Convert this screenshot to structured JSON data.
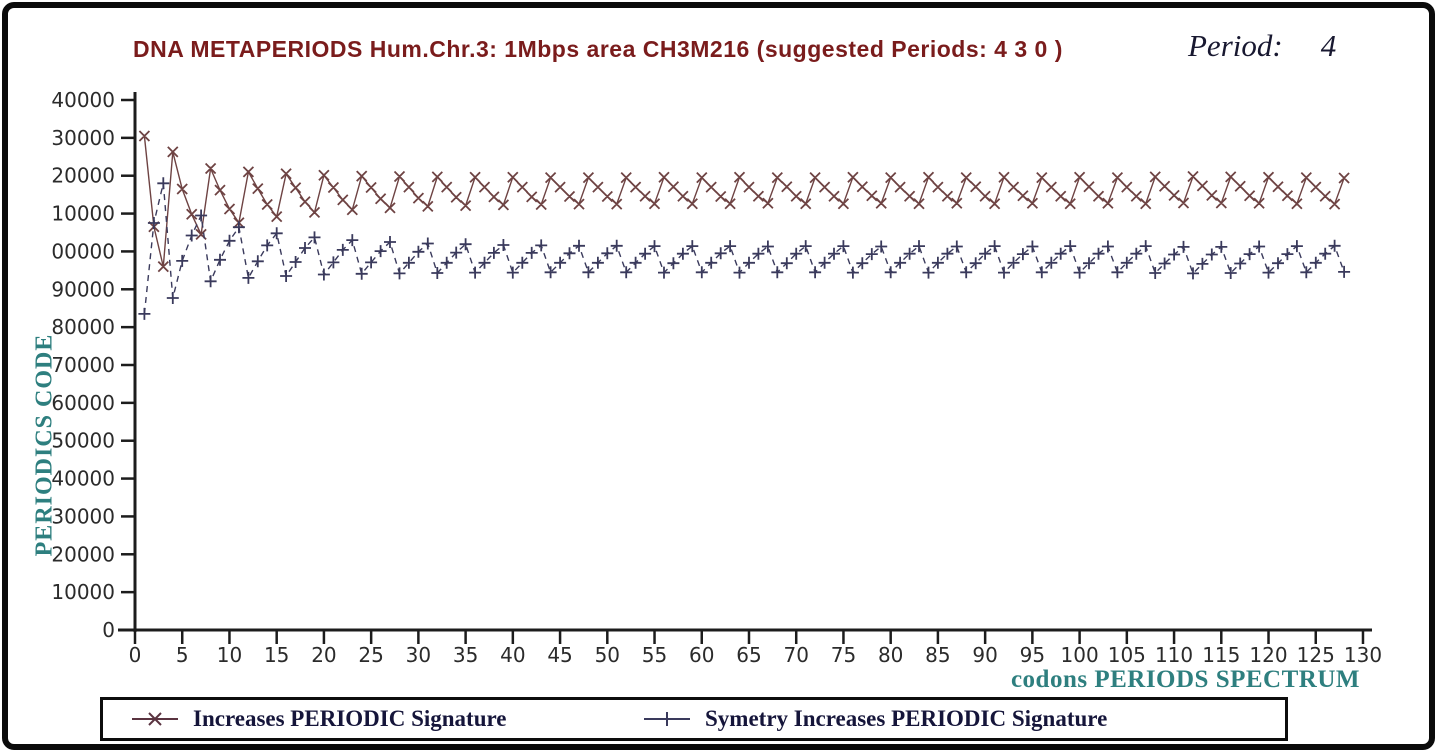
{
  "header": {
    "title": "DNA METAPERIODS Hum.Chr.3: 1Mbps area CH3M216 (suggested Periods: 4 3 0 )",
    "period_label": "Period:",
    "period_value": "4"
  },
  "axes": {
    "y_caption": "PERIODICS CODE",
    "x_caption": "codons PERIODS SPECTRUM",
    "ytick_labels": [
      "40000",
      "30000",
      "20000",
      "10000",
      "00000",
      "90000",
      "80000",
      "70000",
      "60000",
      "50000",
      "40000",
      "30000",
      "20000",
      "10000",
      "0"
    ],
    "xtick_labels": [
      "0",
      "5",
      "10",
      "15",
      "20",
      "25",
      "30",
      "35",
      "40",
      "45",
      "50",
      "55",
      "60",
      "65",
      "70",
      "75",
      "80",
      "85",
      "90",
      "95",
      "100",
      "105",
      "110",
      "115",
      "120",
      "125",
      "130"
    ]
  },
  "legend": {
    "items": [
      {
        "marker": "x-marker-icon",
        "label": "Increases PERIODIC Signature"
      },
      {
        "marker": "plus-marker-icon",
        "label": "Symetry Increases PERIODIC Signature"
      }
    ]
  },
  "colors": {
    "title": "#7a1c1c",
    "period_text": "#181830",
    "teal_caption": "#2e7f7f",
    "axis": "#1c1c1c",
    "tick_text": "#2b2b2b",
    "series_x": "#6e4343",
    "series_plus": "#3a3a5c",
    "legend_text": "#15153a"
  },
  "chart_data": {
    "type": "line",
    "title": "DNA METAPERIODS Hum.Chr.3: 1Mbps area CH3M216 (suggested Periods: 4 3 0 )",
    "xlabel": "codons PERIODS SPECTRUM",
    "ylabel": "PERIODICS CODE",
    "xlim": [
      0,
      130
    ],
    "ylim": [
      0,
      140000
    ],
    "xtick_step": 5,
    "ytick_step": 10000,
    "grid": false,
    "legend_position": "bottom",
    "x_start": 1,
    "x_step": 1,
    "series": [
      {
        "name": "Increases PERIODIC Signature",
        "marker": "x",
        "line_style": "solid",
        "values": [
          130500,
          106500,
          96000,
          126300,
          116500,
          109800,
          104500,
          121900,
          116200,
          111200,
          107600,
          121000,
          116600,
          112400,
          109200,
          120500,
          116800,
          113100,
          110300,
          120100,
          116900,
          113600,
          111000,
          119900,
          116900,
          113900,
          111500,
          119800,
          117000,
          114100,
          111900,
          119700,
          117000,
          114300,
          112100,
          119600,
          117000,
          114400,
          112300,
          119600,
          117000,
          114400,
          112400,
          119500,
          117000,
          114500,
          112500,
          119500,
          117000,
          114500,
          112500,
          119500,
          117000,
          114600,
          112600,
          119600,
          117100,
          114600,
          112600,
          119500,
          117000,
          114500,
          112600,
          119600,
          117000,
          114600,
          112700,
          119500,
          117100,
          114600,
          112600,
          119500,
          117000,
          114600,
          112600,
          119600,
          117100,
          114700,
          112700,
          119500,
          117000,
          114600,
          112600,
          119600,
          117000,
          114600,
          112700,
          119500,
          117100,
          114600,
          112600,
          119600,
          117000,
          114700,
          112700,
          119500,
          117000,
          114600,
          112600,
          119600,
          117100,
          114600,
          112700,
          119500,
          117000,
          114600,
          112600,
          119700,
          117200,
          114800,
          112800,
          119800,
          117300,
          114800,
          112800,
          119700,
          117200,
          114700,
          112700,
          119600,
          117100,
          114700,
          112600,
          119500,
          117000,
          114600,
          112500,
          119400
        ]
      },
      {
        "name": "Symetry Increases PERIODIC Signature",
        "marker": "+",
        "line_style": "dashed",
        "values": [
          83500,
          107500,
          118000,
          87700,
          97500,
          104200,
          109500,
          92100,
          97800,
          102800,
          106400,
          93000,
          97400,
          101600,
          104800,
          93500,
          97200,
          100900,
          103700,
          93900,
          97100,
          100400,
          103000,
          94100,
          97100,
          100100,
          102500,
          94200,
          97000,
          99900,
          102100,
          94300,
          97000,
          99700,
          101900,
          94400,
          97000,
          99600,
          101700,
          94400,
          97000,
          99600,
          101600,
          94500,
          97000,
          99500,
          101500,
          94500,
          97000,
          99500,
          101500,
          94500,
          97000,
          99400,
          101400,
          94400,
          96900,
          99400,
          101400,
          94500,
          97000,
          99500,
          101400,
          94400,
          97000,
          99400,
          101300,
          94500,
          96900,
          99400,
          101400,
          94500,
          97000,
          99400,
          101400,
          94400,
          96900,
          99300,
          101300,
          94500,
          97000,
          99400,
          101400,
          94400,
          97000,
          99400,
          101300,
          94500,
          96900,
          99400,
          101400,
          94400,
          97000,
          99300,
          101300,
          94500,
          97000,
          99400,
          101400,
          94400,
          96900,
          99400,
          101300,
          94500,
          97000,
          99400,
          101400,
          94300,
          96800,
          99200,
          101200,
          94200,
          96700,
          99200,
          101200,
          94300,
          96800,
          99300,
          101300,
          94400,
          96900,
          99300,
          101400,
          94500,
          97000,
          99400,
          101500,
          94600
        ]
      }
    ]
  }
}
